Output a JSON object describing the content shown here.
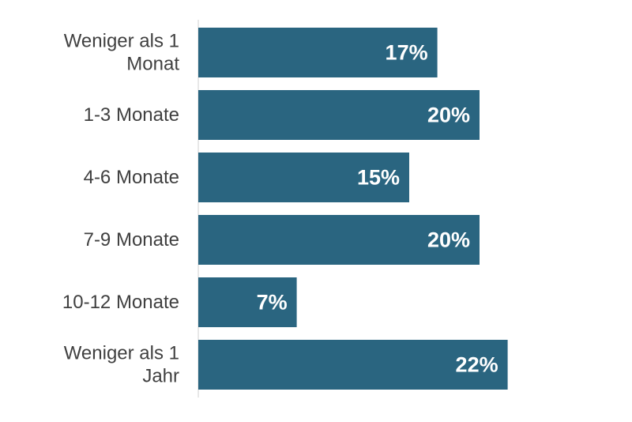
{
  "chart_data": {
    "type": "bar",
    "orientation": "horizontal",
    "categories": [
      [
        "Weniger als 1",
        "Monat"
      ],
      [
        "1-3 Monate"
      ],
      [
        "4-6 Monate"
      ],
      [
        "7-9 Monate"
      ],
      [
        "10-12 Monate"
      ],
      [
        "Weniger als 1",
        "Jahr"
      ]
    ],
    "values": [
      17,
      20,
      15,
      20,
      7,
      22
    ],
    "value_labels": [
      "17%",
      "20%",
      "15%",
      "20%",
      "7%",
      "22%"
    ],
    "unit": "%",
    "title": "",
    "xlabel": "",
    "ylabel": "",
    "xlim": [
      0,
      22
    ],
    "grid": false,
    "legend": "none",
    "bar_color": "#2a6580",
    "axis_color": "#d0d0d0",
    "label_color": "#404040",
    "value_label_color": "#ffffff"
  }
}
